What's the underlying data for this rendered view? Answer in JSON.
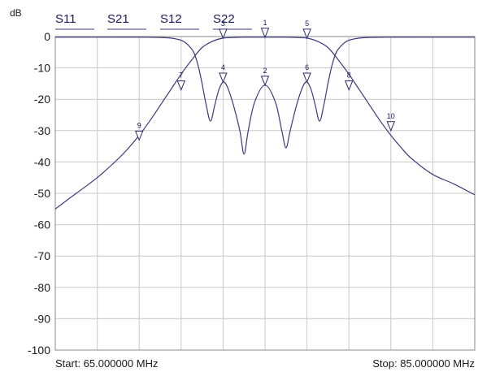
{
  "chart_data": {
    "type": "line",
    "title": "",
    "ylabel": "dB",
    "xlabel": "",
    "xlim": [
      65,
      85
    ],
    "ylim": [
      -100,
      0
    ],
    "yticks": [
      0,
      -10,
      -20,
      -30,
      -40,
      -50,
      -60,
      -70,
      -80,
      -90,
      -100
    ],
    "x_gridlines": [
      65,
      67,
      69,
      71,
      73,
      75,
      77,
      79,
      81,
      83,
      85
    ],
    "grid": true,
    "start_label": "Start: 65.000000 MHz",
    "stop_label": "Stop: 85.000000 MHz",
    "legend_position": "top",
    "legend": [
      "S11",
      "S21",
      "S12",
      "S22"
    ],
    "series": [
      {
        "name": "S21",
        "color": "#3a3a80",
        "x": [
          65,
          66,
          67,
          68,
          68.5,
          69,
          69.5,
          70,
          70.5,
          71,
          71.5,
          72,
          72.5,
          73,
          73.5,
          74,
          74.5,
          75,
          75.5,
          76,
          76.5,
          77,
          77.5,
          78,
          78.5,
          79,
          79.5,
          80,
          80.5,
          81,
          81.5,
          82,
          83,
          84,
          85
        ],
        "y": [
          -55,
          -50,
          -45,
          -39,
          -35.5,
          -31.5,
          -27,
          -22,
          -17,
          -12,
          -7.5,
          -3.5,
          -1.5,
          -0.5,
          -0.3,
          -0.2,
          -0.2,
          -0.2,
          -0.2,
          -0.2,
          -0.3,
          -0.5,
          -1.5,
          -3.5,
          -7.5,
          -12,
          -17,
          -22,
          -27,
          -31.5,
          -35.5,
          -39,
          -44,
          -47,
          -50.5
        ]
      },
      {
        "name": "S11",
        "color": "#3a3a80",
        "x": [
          65,
          66,
          67,
          68,
          69,
          70,
          70.5,
          71,
          71.3,
          71.6,
          71.8,
          72,
          72.2,
          72.4,
          72.6,
          72.8,
          73,
          73.2,
          73.5,
          73.8,
          74,
          74.2,
          74.5,
          75,
          75.5,
          75.8,
          76,
          76.2,
          76.5,
          76.8,
          77,
          77.2,
          77.4,
          77.6,
          77.8,
          78,
          78.2,
          78.4,
          78.7,
          79,
          79.5,
          80,
          81,
          82,
          83,
          84,
          85
        ],
        "y": [
          -0.2,
          -0.2,
          -0.2,
          -0.2,
          -0.2,
          -0.3,
          -0.5,
          -1.2,
          -2.5,
          -5,
          -9,
          -15,
          -22,
          -27,
          -22,
          -17,
          -14.5,
          -16,
          -22,
          -30,
          -37.5,
          -30,
          -21,
          -15.5,
          -21,
          -30,
          -35.5,
          -30,
          -22,
          -16,
          -14.5,
          -17,
          -22,
          -27,
          -22,
          -15,
          -9,
          -5,
          -2.5,
          -1.2,
          -0.5,
          -0.3,
          -0.2,
          -0.2,
          -0.2,
          -0.2,
          -0.2
        ]
      }
    ],
    "markers": [
      {
        "label": "1",
        "x": 75,
        "y": -0.2
      },
      {
        "label": "2",
        "x": 75,
        "y": -15.5
      },
      {
        "label": "3",
        "x": 73,
        "y": -0.5
      },
      {
        "label": "4",
        "x": 73,
        "y": -14.5
      },
      {
        "label": "5",
        "x": 77,
        "y": -0.5
      },
      {
        "label": "6",
        "x": 77,
        "y": -14.5
      },
      {
        "label": "7",
        "x": 71,
        "y": -17
      },
      {
        "label": "8",
        "x": 79,
        "y": -17
      },
      {
        "label": "9",
        "x": 69,
        "y": -33
      },
      {
        "label": "10",
        "x": 81,
        "y": -30
      }
    ]
  }
}
